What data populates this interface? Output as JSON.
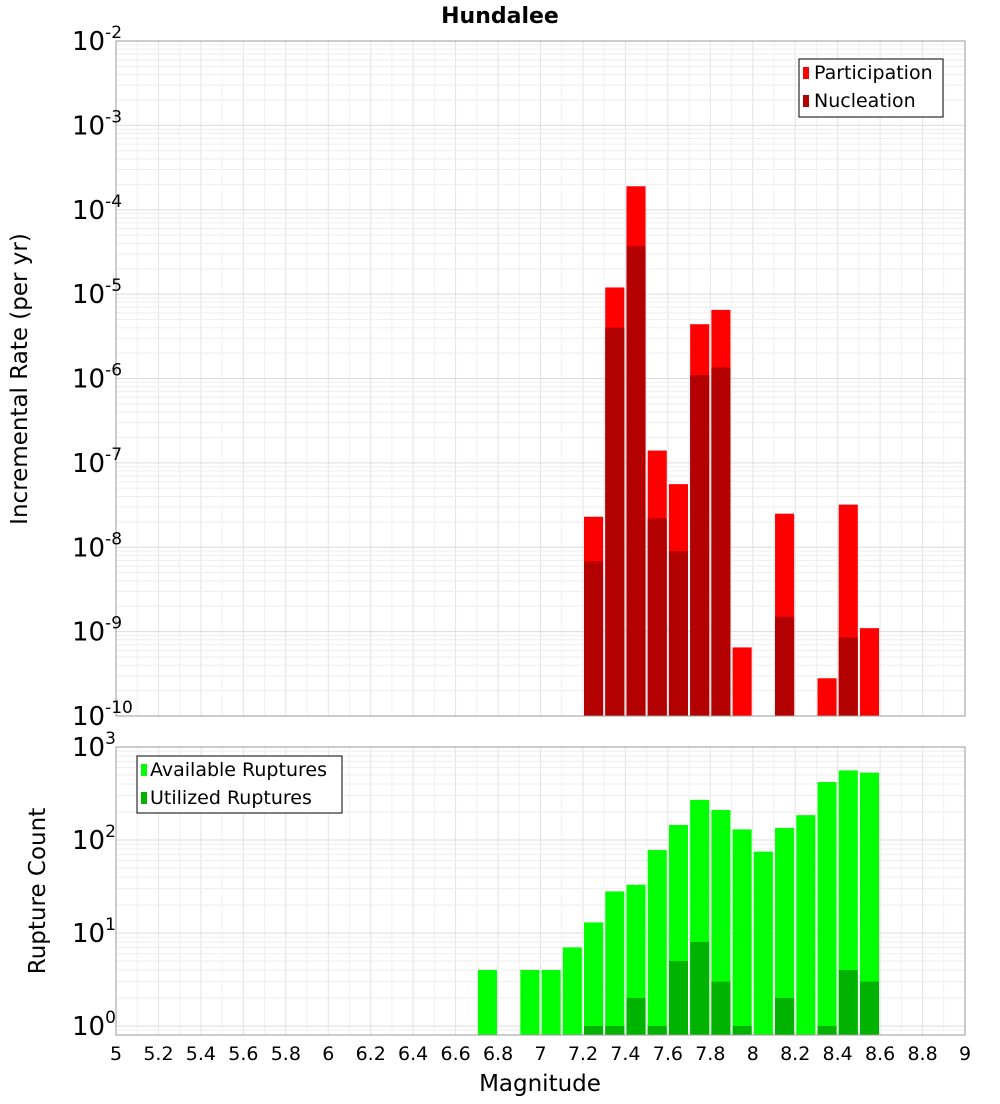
{
  "chart_data": [
    {
      "type": "bar",
      "title": "Hundalee",
      "ylabel": "Incremental Rate (per yr)",
      "xlabel": "",
      "yscale": "log",
      "ylim": [
        1e-10,
        0.01
      ],
      "xlim": [
        5,
        9
      ],
      "legend": "top-right",
      "grid": true,
      "y_ticks": [
        {
          "base": "10",
          "exp": "-10"
        },
        {
          "base": "10",
          "exp": "-9"
        },
        {
          "base": "10",
          "exp": "-8"
        },
        {
          "base": "10",
          "exp": "-7"
        },
        {
          "base": "10",
          "exp": "-6"
        },
        {
          "base": "10",
          "exp": "-5"
        },
        {
          "base": "10",
          "exp": "-4"
        },
        {
          "base": "10",
          "exp": "-3"
        },
        {
          "base": "10",
          "exp": "-2"
        }
      ],
      "series": [
        {
          "name": "Participation",
          "color": "#ff0000",
          "x": [
            7.25,
            7.35,
            7.45,
            7.55,
            7.65,
            7.75,
            7.85,
            7.95,
            8.15,
            8.35,
            8.45,
            8.55
          ],
          "values": [
            2.3e-08,
            1.2e-05,
            0.00019,
            1.4e-07,
            5.6e-08,
            4.4e-06,
            6.5e-06,
            6.5e-10,
            2.5e-08,
            2.8e-10,
            3.2e-08,
            1.1e-09
          ]
        },
        {
          "name": "Nucleation",
          "color": "#b30000",
          "x": [
            7.25,
            7.35,
            7.45,
            7.55,
            7.65,
            7.75,
            7.85,
            8.15,
            8.45
          ],
          "values": [
            6.8e-09,
            4e-06,
            3.7e-05,
            2.2e-08,
            9e-09,
            1.1e-06,
            1.35e-06,
            1.5e-09,
            8.5e-10
          ]
        }
      ]
    },
    {
      "type": "bar",
      "title": "",
      "ylabel": "Rupture Count",
      "xlabel": "Magnitude",
      "yscale": "log",
      "ylim": [
        0.8,
        1000
      ],
      "xlim": [
        5,
        9
      ],
      "legend": "top-left",
      "grid": true,
      "y_ticks": [
        {
          "base": "10",
          "exp": "0",
          "value": 1
        },
        {
          "base": "10",
          "exp": "1",
          "value": 10
        },
        {
          "base": "10",
          "exp": "2",
          "value": 100
        },
        {
          "base": "10",
          "exp": "3",
          "value": 1000
        }
      ],
      "x_ticks": [
        "5",
        "5.2",
        "5.4",
        "5.6",
        "5.8",
        "6",
        "6.2",
        "6.4",
        "6.6",
        "6.8",
        "7",
        "7.2",
        "7.4",
        "7.6",
        "7.8",
        "8",
        "8.2",
        "8.4",
        "8.6",
        "8.8",
        "9"
      ],
      "series": [
        {
          "name": "Available Ruptures",
          "color": "#00ff00",
          "x": [
            6.75,
            6.95,
            7.05,
            7.15,
            7.25,
            7.35,
            7.45,
            7.55,
            7.65,
            7.75,
            7.85,
            7.95,
            8.05,
            8.15,
            8.25,
            8.35,
            8.45,
            8.55
          ],
          "values": [
            4,
            4,
            4,
            7,
            13,
            28,
            33,
            78,
            145,
            270,
            210,
            130,
            75,
            135,
            185,
            420,
            560,
            530
          ]
        },
        {
          "name": "Utilized Ruptures",
          "color": "#00b300",
          "x": [
            7.25,
            7.35,
            7.45,
            7.55,
            7.65,
            7.75,
            7.85,
            7.95,
            8.15,
            8.35,
            8.45,
            8.55
          ],
          "values": [
            1,
            1,
            2,
            1,
            5,
            8,
            3,
            1,
            2,
            1,
            4,
            3
          ]
        }
      ]
    }
  ]
}
